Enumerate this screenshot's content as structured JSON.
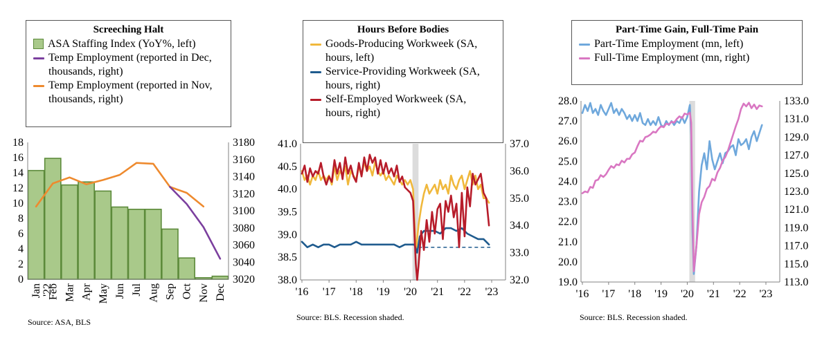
{
  "colors": {
    "bar_fill": "#a9c98a",
    "bar_edge": "#5c8a3a",
    "purple": "#7b3f9e",
    "orange": "#ee8a2e",
    "gold": "#f0b83c",
    "navy": "#1f5b8e",
    "crimson": "#b71c2a",
    "light_blue": "#6fa8dc",
    "pink": "#d977c2",
    "recession": "#dcdcdc",
    "axis": "#808080"
  },
  "panels": [
    {
      "title": "Screeching Halt",
      "legend": [
        {
          "label": "ASA Staffing Index (YoY%, left)",
          "swatch": "bar",
          "color": "#a9c98a"
        },
        {
          "label": "Temp Employment (reported in Dec, thousands, right)",
          "swatch": "line",
          "color": "#7b3f9e"
        },
        {
          "label": "Temp Employment (reported in Nov, thousands, right)",
          "swatch": "line",
          "color": "#ee8a2e"
        }
      ],
      "source": "Source: ASA, BLS"
    },
    {
      "title": "Hours Before Bodies",
      "legend": [
        {
          "label": "Goods-Producing Workweek (SA, hours, left)",
          "swatch": "line",
          "color": "#f0b83c"
        },
        {
          "label": "Service-Providing Workweek (SA, hours, right)",
          "swatch": "line",
          "color": "#1f5b8e"
        },
        {
          "label": "Self-Employed Workweek (SA, hours, right)",
          "swatch": "line",
          "color": "#b71c2a"
        }
      ],
      "source": "Source: BLS. Recession shaded."
    },
    {
      "title": "Part-Time Gain, Full-Time Pain",
      "legend": [
        {
          "label": "Part-Time Employment (mn, left)",
          "swatch": "line",
          "color": "#6fa8dc"
        },
        {
          "label": "Full-Time Employment (mn, right)",
          "swatch": "line",
          "color": "#d977c2"
        }
      ],
      "source": "Source: BLS. Recession shaded."
    }
  ],
  "chart_data": [
    {
      "type": "bar",
      "title": "Screeching Halt",
      "categories": [
        "Jan '22",
        "Feb",
        "Mar",
        "Apr",
        "May",
        "Jun",
        "Jul",
        "Aug",
        "Sep",
        "Oct",
        "Nov",
        "Dec"
      ],
      "left_axis": {
        "ylim": [
          0,
          18
        ],
        "ticks": [
          "0",
          "2",
          "4",
          "6",
          "8",
          "10",
          "12",
          "14",
          "16",
          "18"
        ]
      },
      "right_axis": {
        "ylim": [
          3020,
          3180
        ],
        "ticks": [
          "3020",
          "3040",
          "3060",
          "3080",
          "3100",
          "3120",
          "3140",
          "3160",
          "3180"
        ]
      },
      "series": [
        {
          "name": "ASA Staffing Index (YoY%, left)",
          "kind": "bar",
          "axis": "left",
          "values": [
            14.3,
            15.9,
            12.4,
            12.8,
            11.6,
            9.5,
            9.2,
            9.2,
            6.6,
            2.8,
            0.2,
            0.4
          ]
        },
        {
          "name": "Temp Employment (reported in Nov, thousands, right)",
          "kind": "line",
          "axis": "right",
          "values": [
            3105,
            3132,
            3139,
            3131,
            3136,
            3142,
            3156,
            3155,
            3128,
            3121,
            3105,
            null
          ]
        },
        {
          "name": "Temp Employment (reported in Dec, thousands, right)",
          "kind": "line",
          "axis": "right",
          "values": [
            null,
            null,
            null,
            null,
            null,
            null,
            null,
            null,
            3128,
            3108,
            3081,
            3044
          ]
        }
      ]
    },
    {
      "type": "line",
      "title": "Hours Before Bodies",
      "x_ticks": [
        "'16",
        "'17",
        "'18",
        "'19",
        "'20",
        "'21",
        "'22",
        "'23"
      ],
      "x_range": [
        2016.0,
        2023.0
      ],
      "recession": [
        2020.08,
        2020.3
      ],
      "left_axis": {
        "ylim": [
          38.0,
          41.0
        ],
        "ticks": [
          "38.0",
          "38.5",
          "39.0",
          "39.5",
          "40.0",
          "40.5",
          "41.0"
        ]
      },
      "right_axis": {
        "ylim": [
          32.0,
          37.0
        ],
        "ticks": [
          "32.0",
          "33.0",
          "34.0",
          "35.0",
          "36.0",
          "37.0"
        ]
      },
      "reference_line": {
        "axis": "right",
        "value": 33.2,
        "from": 2020.3
      },
      "series": [
        {
          "name": "Goods-Producing Workweek (SA, hours, left)",
          "axis": "left",
          "x": [
            2016.0,
            2016.1,
            2016.2,
            2016.3,
            2016.4,
            2016.5,
            2016.6,
            2016.7,
            2016.8,
            2016.9,
            2017.0,
            2017.1,
            2017.2,
            2017.3,
            2017.4,
            2017.5,
            2017.6,
            2017.7,
            2017.8,
            2017.9,
            2018.0,
            2018.1,
            2018.2,
            2018.3,
            2018.4,
            2018.5,
            2018.6,
            2018.7,
            2018.8,
            2018.9,
            2019.0,
            2019.1,
            2019.2,
            2019.3,
            2019.4,
            2019.5,
            2019.6,
            2019.7,
            2019.8,
            2019.9,
            2020.0,
            2020.1,
            2020.2,
            2020.3,
            2020.4,
            2020.5,
            2020.6,
            2020.7,
            2020.8,
            2020.9,
            2021.0,
            2021.1,
            2021.2,
            2021.3,
            2021.4,
            2021.5,
            2021.6,
            2021.7,
            2021.8,
            2021.9,
            2022.0,
            2022.1,
            2022.2,
            2022.3,
            2022.4,
            2022.5,
            2022.6,
            2022.7,
            2022.8,
            2022.9
          ],
          "y": [
            40.4,
            40.2,
            40.3,
            40.1,
            40.3,
            40.2,
            40.4,
            40.2,
            40.3,
            40.2,
            40.3,
            40.1,
            40.5,
            40.2,
            40.4,
            40.3,
            40.5,
            40.1,
            40.4,
            40.3,
            40.2,
            40.5,
            40.3,
            40.6,
            40.4,
            40.5,
            40.3,
            40.6,
            40.4,
            40.3,
            40.4,
            40.2,
            40.3,
            40.2,
            40.1,
            40.3,
            40.2,
            40.1,
            40.2,
            40.1,
            40.2,
            40.0,
            38.6,
            39.2,
            39.6,
            39.9,
            40.1,
            39.9,
            40.0,
            40.1,
            39.9,
            40.2,
            40.0,
            40.1,
            39.9,
            40.3,
            40.1,
            40.0,
            40.2,
            40.3,
            40.0,
            40.2,
            40.4,
            40.1,
            40.3,
            40.0,
            40.1,
            39.8,
            39.8,
            39.7
          ]
        },
        {
          "name": "Service-Providing Workweek (SA, hours, right)",
          "axis": "right",
          "x": [
            2016.0,
            2016.2,
            2016.4,
            2016.6,
            2016.8,
            2017.0,
            2017.2,
            2017.4,
            2017.6,
            2017.8,
            2018.0,
            2018.2,
            2018.4,
            2018.6,
            2018.8,
            2019.0,
            2019.2,
            2019.4,
            2019.6,
            2019.8,
            2020.0,
            2020.15,
            2020.25,
            2020.35,
            2020.5,
            2020.7,
            2020.9,
            2021.1,
            2021.3,
            2021.5,
            2021.7,
            2021.9,
            2022.1,
            2022.3,
            2022.5,
            2022.7,
            2022.9
          ],
          "y": [
            33.4,
            33.2,
            33.3,
            33.2,
            33.3,
            33.3,
            33.2,
            33.3,
            33.3,
            33.3,
            33.4,
            33.3,
            33.3,
            33.3,
            33.3,
            33.3,
            33.3,
            33.3,
            33.2,
            33.3,
            33.3,
            33.3,
            33.0,
            33.6,
            33.8,
            33.8,
            33.8,
            33.7,
            33.9,
            33.9,
            33.8,
            33.9,
            33.7,
            33.6,
            33.5,
            33.5,
            33.3
          ]
        },
        {
          "name": "Self-Employed Workweek (SA, hours, right)",
          "axis": "right",
          "x": [
            2016.0,
            2016.1,
            2016.2,
            2016.3,
            2016.4,
            2016.5,
            2016.6,
            2016.7,
            2016.8,
            2016.9,
            2017.0,
            2017.1,
            2017.2,
            2017.3,
            2017.4,
            2017.5,
            2017.6,
            2017.7,
            2017.8,
            2017.9,
            2018.0,
            2018.1,
            2018.2,
            2018.3,
            2018.4,
            2018.5,
            2018.6,
            2018.7,
            2018.8,
            2018.9,
            2019.0,
            2019.1,
            2019.2,
            2019.3,
            2019.4,
            2019.5,
            2019.6,
            2019.7,
            2019.8,
            2019.9,
            2020.0,
            2020.1,
            2020.2,
            2020.25,
            2020.3,
            2020.4,
            2020.5,
            2020.6,
            2020.7,
            2020.8,
            2020.9,
            2021.0,
            2021.1,
            2021.2,
            2021.3,
            2021.4,
            2021.5,
            2021.6,
            2021.7,
            2021.8,
            2021.9,
            2022.0,
            2022.1,
            2022.2,
            2022.3,
            2022.4,
            2022.5,
            2022.6,
            2022.7,
            2022.8,
            2022.9
          ],
          "y": [
            35.9,
            36.2,
            35.6,
            36.1,
            35.8,
            36.0,
            35.9,
            36.3,
            35.8,
            35.5,
            35.8,
            35.6,
            36.4,
            35.9,
            36.3,
            35.7,
            36.5,
            35.9,
            36.2,
            35.8,
            35.6,
            36.3,
            35.8,
            36.5,
            36.0,
            36.6,
            36.3,
            36.5,
            35.9,
            36.4,
            35.9,
            36.3,
            35.9,
            36.1,
            35.8,
            36.2,
            35.6,
            35.8,
            35.4,
            35.3,
            35.2,
            34.9,
            32.6,
            32.0,
            32.5,
            33.8,
            33.1,
            34.2,
            33.4,
            34.5,
            33.7,
            34.6,
            34.8,
            33.5,
            34.9,
            34.5,
            35.1,
            34.3,
            34.8,
            33.2,
            35.2,
            33.6,
            35.4,
            34.7,
            35.9,
            35.5,
            35.7,
            35.9,
            35.2,
            35.0,
            34.0
          ]
        }
      ]
    },
    {
      "type": "line",
      "title": "Part-Time Gain, Full-Time Pain",
      "x_ticks": [
        "'16",
        "'17",
        "'18",
        "'19",
        "'20",
        "'21",
        "'22",
        "'23"
      ],
      "x_range": [
        2016.0,
        2023.0
      ],
      "recession": [
        2020.08,
        2020.3
      ],
      "left_axis": {
        "ylim": [
          19.0,
          28.0
        ],
        "ticks": [
          "19.0",
          "20.0",
          "21.0",
          "22.0",
          "23.0",
          "24.0",
          "25.0",
          "26.0",
          "27.0",
          "28.0"
        ]
      },
      "right_axis": {
        "ylim": [
          113.0,
          133.0
        ],
        "ticks": [
          "113.0",
          "115.0",
          "117.0",
          "119.0",
          "121.0",
          "123.0",
          "125.0",
          "127.0",
          "129.0",
          "131.0",
          "133.0"
        ]
      },
      "series": [
        {
          "name": "Part-Time Employment (mn, left)",
          "axis": "left",
          "x": [
            2016.0,
            2016.1,
            2016.2,
            2016.3,
            2016.4,
            2016.5,
            2016.6,
            2016.7,
            2016.8,
            2016.9,
            2017.0,
            2017.1,
            2017.2,
            2017.3,
            2017.4,
            2017.5,
            2017.6,
            2017.7,
            2017.8,
            2017.9,
            2018.0,
            2018.1,
            2018.2,
            2018.3,
            2018.4,
            2018.5,
            2018.6,
            2018.7,
            2018.8,
            2018.9,
            2019.0,
            2019.1,
            2019.2,
            2019.3,
            2019.4,
            2019.5,
            2019.6,
            2019.7,
            2019.8,
            2019.9,
            2020.0,
            2020.1,
            2020.15,
            2020.2,
            2020.25,
            2020.35,
            2020.45,
            2020.55,
            2020.65,
            2020.75,
            2020.85,
            2020.95,
            2021.05,
            2021.15,
            2021.25,
            2021.35,
            2021.45,
            2021.55,
            2021.65,
            2021.75,
            2021.85,
            2021.95,
            2022.05,
            2022.15,
            2022.25,
            2022.35,
            2022.45,
            2022.55,
            2022.65,
            2022.75,
            2022.85
          ],
          "y": [
            27.4,
            27.8,
            27.5,
            27.9,
            27.4,
            27.6,
            27.3,
            27.8,
            27.5,
            27.3,
            27.6,
            27.9,
            27.4,
            27.6,
            27.3,
            27.6,
            27.4,
            27.1,
            27.3,
            27.0,
            27.3,
            27.0,
            27.4,
            26.9,
            26.8,
            27.1,
            26.8,
            27.0,
            26.8,
            27.2,
            26.8,
            26.7,
            27.0,
            26.8,
            27.0,
            26.8,
            27.0,
            26.9,
            27.2,
            26.9,
            27.2,
            27.8,
            26.3,
            21.5,
            19.4,
            20.8,
            23.5,
            24.8,
            25.4,
            24.6,
            26.0,
            25.1,
            24.6,
            25.0,
            25.4,
            24.9,
            25.4,
            25.5,
            25.7,
            25.8,
            25.3,
            26.1,
            25.8,
            25.9,
            26.1,
            25.6,
            26.2,
            26.5,
            26.0,
            26.4,
            26.8
          ]
        },
        {
          "name": "Full-Time Employment (mn, right)",
          "axis": "right",
          "x": [
            2016.0,
            2016.1,
            2016.2,
            2016.3,
            2016.4,
            2016.5,
            2016.6,
            2016.7,
            2016.8,
            2016.9,
            2017.0,
            2017.1,
            2017.2,
            2017.3,
            2017.4,
            2017.5,
            2017.6,
            2017.7,
            2017.8,
            2017.9,
            2018.0,
            2018.1,
            2018.2,
            2018.3,
            2018.4,
            2018.5,
            2018.6,
            2018.7,
            2018.8,
            2018.9,
            2019.0,
            2019.1,
            2019.2,
            2019.3,
            2019.4,
            2019.5,
            2019.6,
            2019.7,
            2019.8,
            2019.9,
            2020.0,
            2020.1,
            2020.15,
            2020.2,
            2020.25,
            2020.35,
            2020.45,
            2020.55,
            2020.65,
            2020.75,
            2020.85,
            2020.95,
            2021.05,
            2021.15,
            2021.25,
            2021.35,
            2021.45,
            2021.55,
            2021.65,
            2021.75,
            2021.85,
            2021.95,
            2022.05,
            2022.15,
            2022.25,
            2022.35,
            2022.45,
            2022.55,
            2022.65,
            2022.75,
            2022.85
          ],
          "y": [
            122.8,
            123.0,
            122.9,
            123.5,
            123.4,
            124.2,
            124.3,
            124.8,
            124.6,
            124.9,
            125.4,
            125.8,
            125.6,
            126.0,
            125.9,
            126.4,
            126.2,
            126.6,
            126.6,
            127.1,
            127.3,
            128.0,
            128.6,
            128.5,
            129.0,
            129.1,
            129.3,
            129.6,
            129.5,
            129.9,
            130.2,
            130.1,
            130.5,
            130.4,
            130.7,
            130.6,
            131.0,
            131.3,
            131.1,
            131.6,
            131.5,
            131.7,
            130.6,
            121.0,
            114.2,
            117.0,
            120.5,
            121.8,
            122.4,
            123.3,
            123.6,
            124.4,
            124.2,
            125.1,
            125.6,
            126.4,
            126.8,
            127.5,
            128.4,
            129.3,
            130.2,
            131.0,
            132.1,
            132.7,
            132.4,
            132.8,
            132.2,
            132.6,
            132.1,
            132.5,
            132.4
          ]
        }
      ]
    }
  ]
}
